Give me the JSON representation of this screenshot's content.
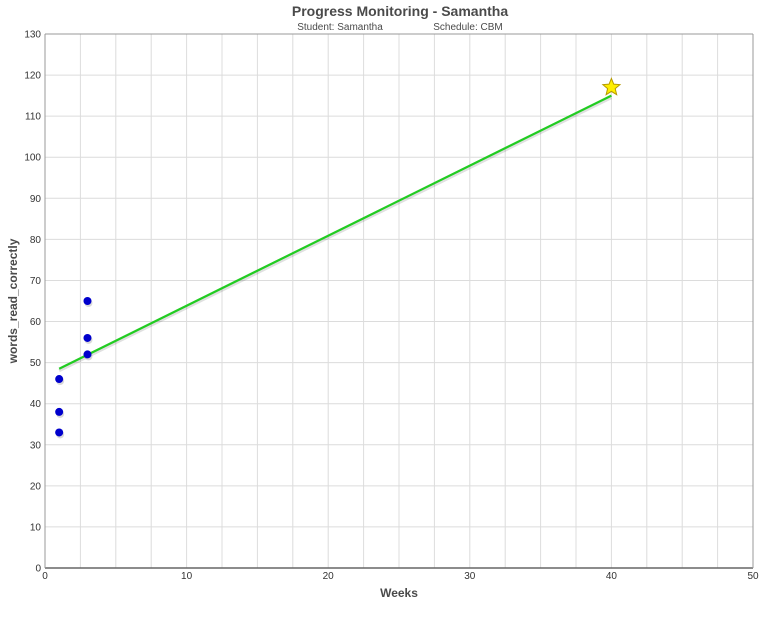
{
  "chart_data": {
    "type": "scatter",
    "title": "Progress Monitoring - Samantha",
    "subtitle_student": "Student: Samantha",
    "subtitle_schedule": "Schedule: CBM",
    "xlabel": "Weeks",
    "ylabel": "words_read_correctly",
    "xlim": [
      0,
      50
    ],
    "ylim": [
      0,
      130
    ],
    "x_ticks": [
      0,
      10,
      20,
      30,
      40,
      50
    ],
    "y_ticks": [
      0,
      10,
      20,
      30,
      40,
      50,
      60,
      70,
      80,
      90,
      100,
      110,
      120,
      130
    ],
    "grid": true,
    "series": [
      {
        "type": "scatter",
        "color": "#0000cc",
        "points": [
          {
            "x": 1,
            "y": 33
          },
          {
            "x": 1,
            "y": 38
          },
          {
            "x": 1,
            "y": 46
          },
          {
            "x": 3,
            "y": 52
          },
          {
            "x": 3,
            "y": 56
          },
          {
            "x": 3,
            "y": 65
          }
        ]
      },
      {
        "type": "line",
        "color": "#22cc22",
        "points": [
          {
            "x": 1,
            "y": 48.5
          },
          {
            "x": 40,
            "y": 115
          }
        ]
      },
      {
        "type": "marker",
        "marker": "star-icon",
        "color": "#ffee00",
        "points": [
          {
            "x": 40,
            "y": 117
          }
        ]
      }
    ]
  }
}
